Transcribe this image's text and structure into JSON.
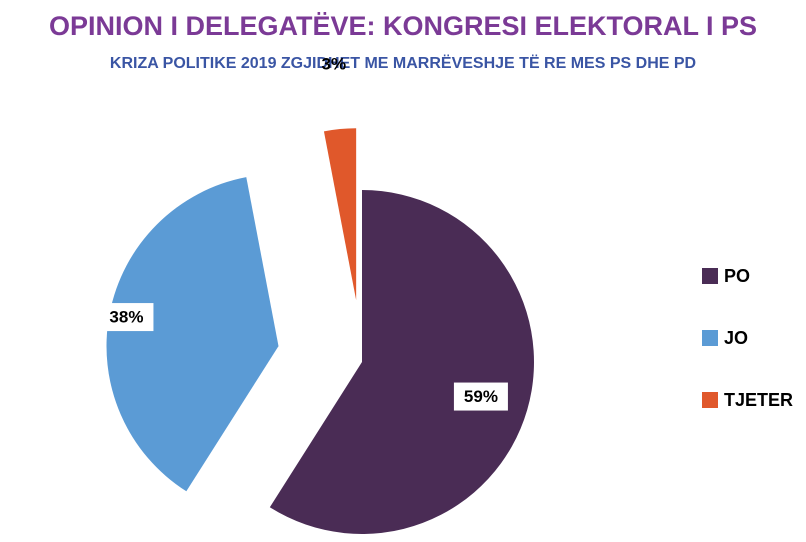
{
  "chart_data": {
    "type": "pie",
    "title": "OPINION I DELEGATËVE: KONGRESI ELEKTORAL I PS",
    "subtitle": "KRIZA POLITIKE 2019 ZGJIDHET ME MARRËVESHJE TË RE MES PS DHE PD",
    "categories": [
      "PO",
      "JO",
      "TJETER"
    ],
    "values": [
      59,
      38,
      3
    ],
    "value_labels": [
      "59%",
      "38%",
      "3%"
    ],
    "colors": [
      "#4a2c55",
      "#5b9bd5",
      "#e0582b"
    ],
    "legend": "right"
  }
}
